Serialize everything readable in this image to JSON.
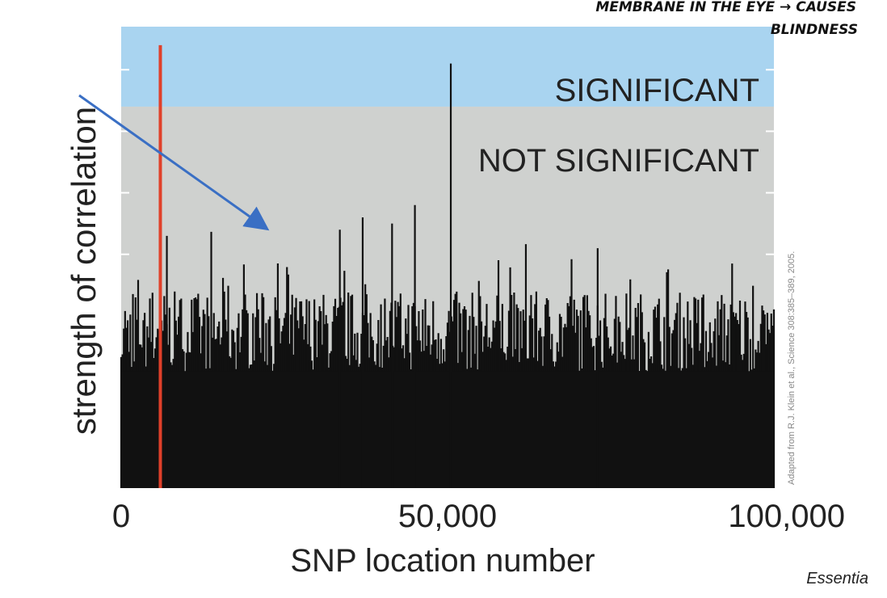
{
  "annotation": {
    "line1": "MEMBRANE IN THE EYE → CAUSES",
    "line2": "BLINDNESS"
  },
  "credit": "Adapted from R.J. Klein et al., Science 308:385–389, 2005.",
  "publisher": "Essentia",
  "colors": {
    "significant_band": "#a9d4f0",
    "not_significant_band": "#cfd1cf",
    "bars": "#111111",
    "highlight": "#e0402a",
    "arrow": "#3a6fc4"
  },
  "chart_data": {
    "type": "bar",
    "xlabel": "SNP location number",
    "ylabel": "strength of correlation",
    "xlim": [
      0,
      100000
    ],
    "ylim": [
      0,
      7.5
    ],
    "significance_threshold": 6.2,
    "x_ticks": [
      "0",
      "50,000",
      "100,000"
    ],
    "regions": [
      {
        "label": "SIGNIFICANT",
        "from": 6.2,
        "to": 7.5
      },
      {
        "label": "NOT SIGNIFICANT",
        "from": 0,
        "to": 6.2
      }
    ],
    "highlighted_snp": {
      "x": 6000,
      "value": 7.2
    },
    "notable_peaks": [
      {
        "x": 7000,
        "value": 4.1
      },
      {
        "x": 33500,
        "value": 4.2
      },
      {
        "x": 37000,
        "value": 4.4
      },
      {
        "x": 41500,
        "value": 4.3
      },
      {
        "x": 45000,
        "value": 4.6
      },
      {
        "x": 50500,
        "value": 6.9
      },
      {
        "x": 73000,
        "value": 3.9
      }
    ],
    "baseline_range": [
      1.9,
      3.2
    ]
  }
}
